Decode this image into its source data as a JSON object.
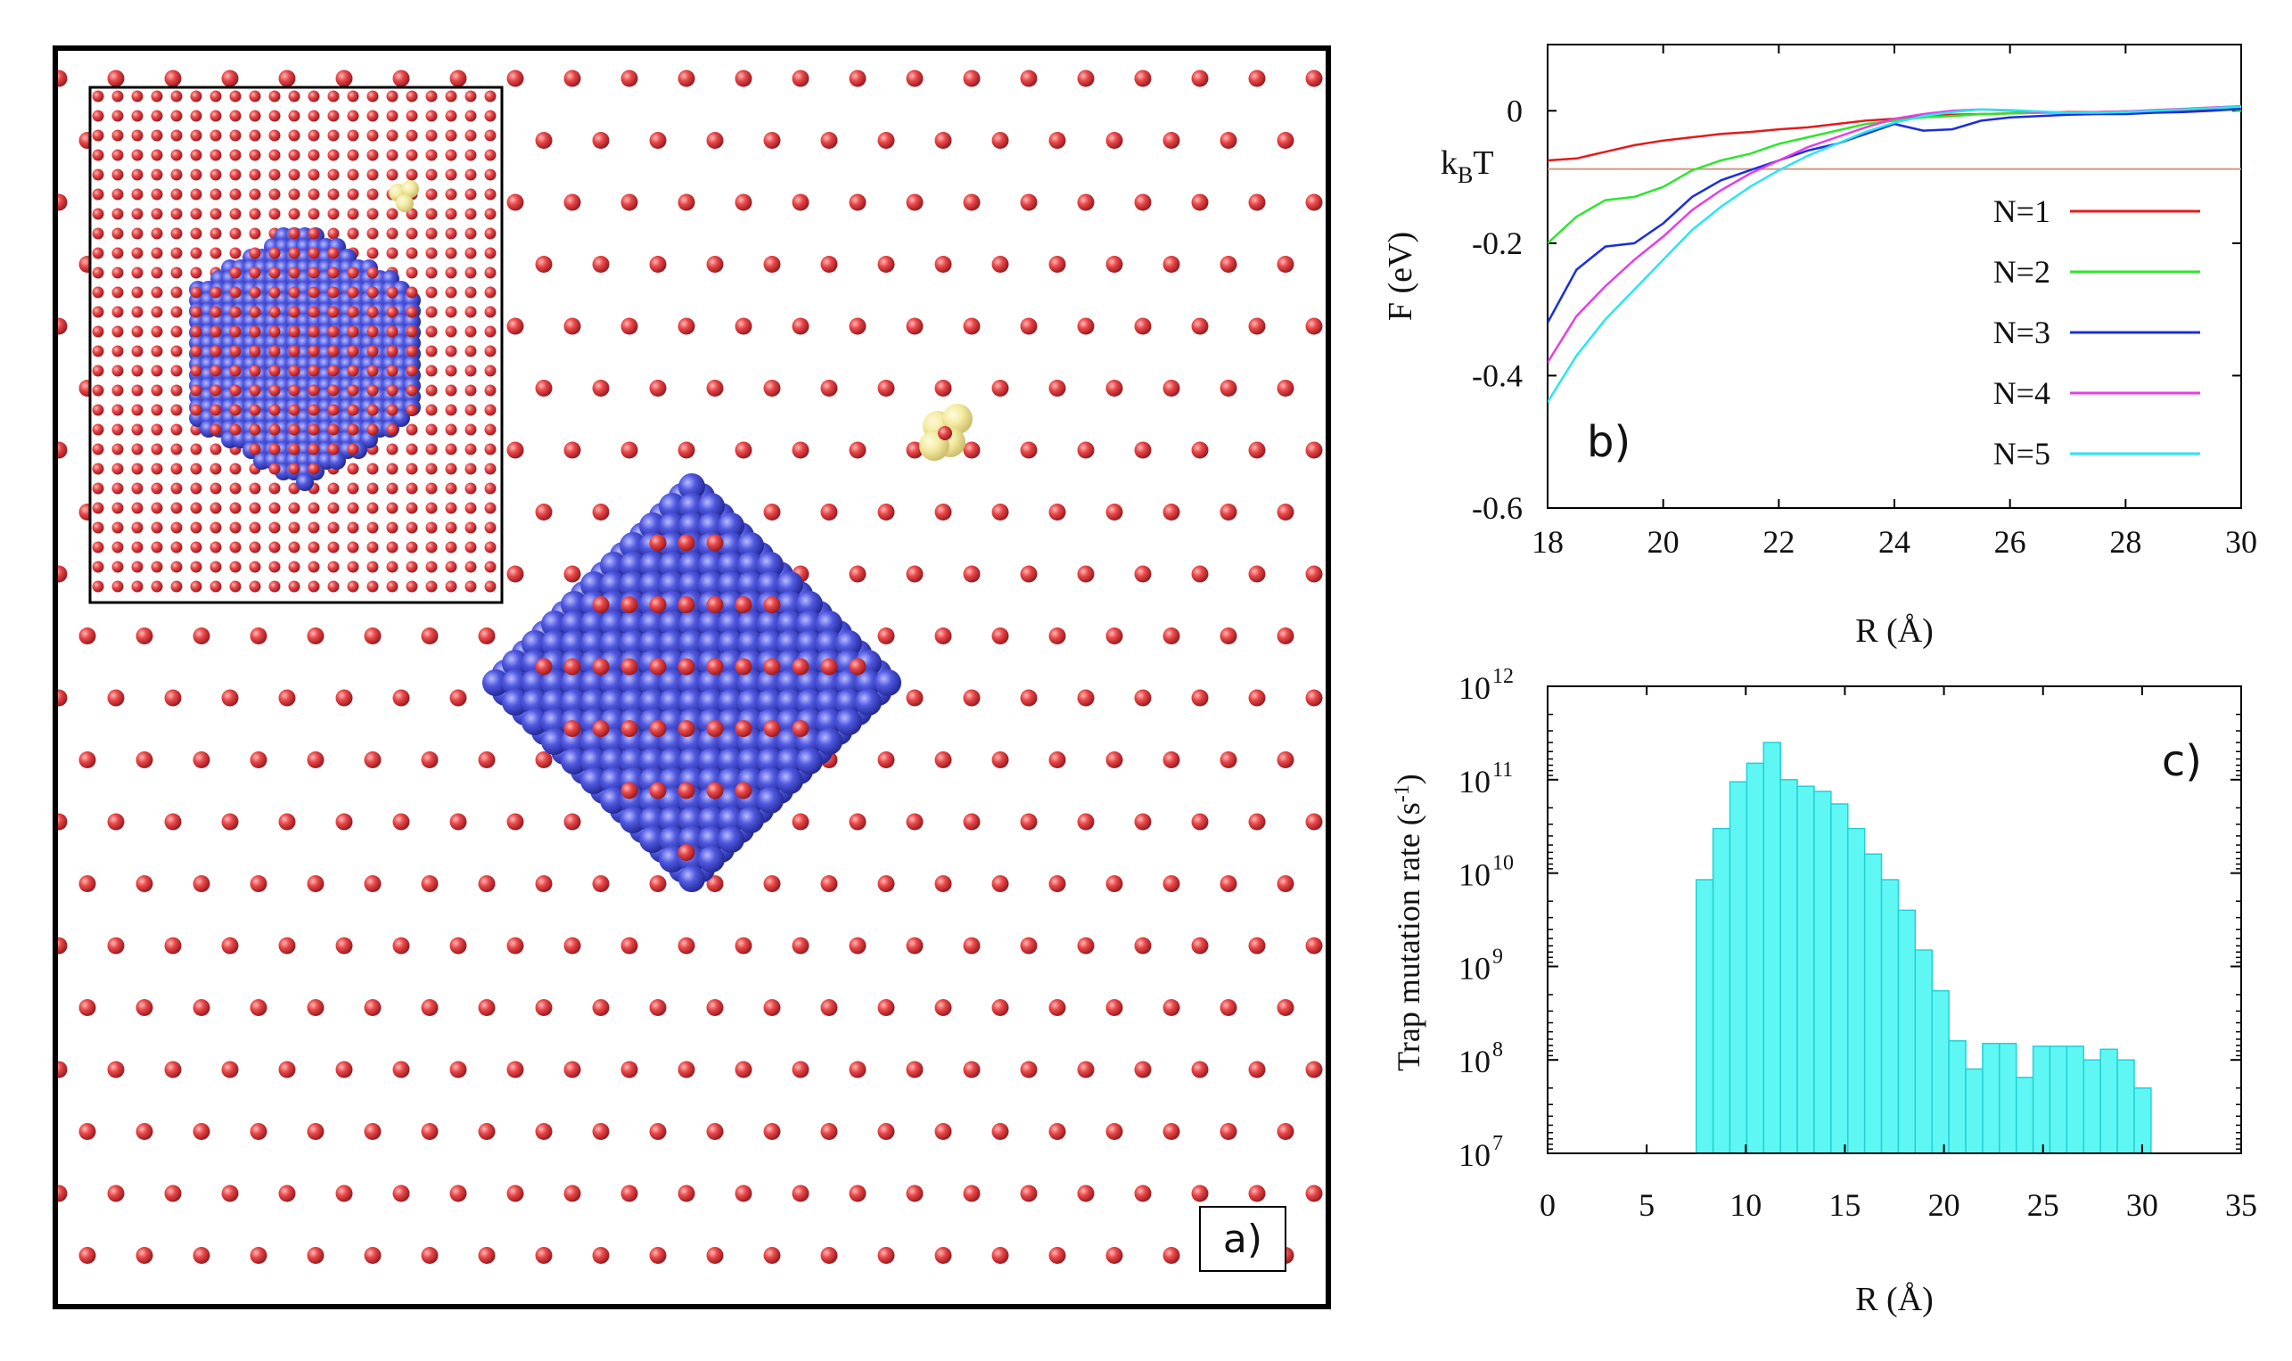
{
  "colors": {
    "lattice_atom": "#e8484a",
    "cluster_atom": "#5058e0",
    "interstitial": "#f3eba0",
    "kbt_line": "#c89a86",
    "hist_fill": "#5ff7f3",
    "hist_edge": "#22d0d8",
    "series_colors": [
      "#e41a1c",
      "#2ee62e",
      "#1a2ee0",
      "#e63ee6",
      "#29e6f0"
    ]
  },
  "panel_a": {
    "label": "a)",
    "icons": [
      "lattice-atom-icon",
      "vacancy-cluster-icon",
      "interstitial-cluster-icon"
    ]
  },
  "chart_data": [
    {
      "type": "line",
      "panel": "b)",
      "title": "",
      "xlabel": "R (Å)",
      "ylabel": "F (eV)",
      "xlim": [
        18,
        30
      ],
      "ylim": [
        -0.6,
        0.1
      ],
      "xticks": [
        "18",
        "20",
        "22",
        "24",
        "26",
        "28",
        "30"
      ],
      "yticks": [
        "0",
        "-0.2",
        "-0.4",
        "-0.6"
      ],
      "ytick_values": [
        0,
        -0.2,
        -0.4,
        -0.6
      ],
      "reference_line": {
        "label_main": "k",
        "label_sub": "B",
        "label_tail": "T",
        "value": -0.088
      },
      "legend_position": "right",
      "x": [
        18,
        18.5,
        19,
        19.5,
        20,
        20.5,
        21,
        21.5,
        22,
        22.5,
        23,
        23.5,
        24,
        24.5,
        25,
        25.5,
        26,
        26.5,
        27,
        27.5,
        28,
        28.5,
        29,
        29.5,
        30
      ],
      "series": [
        {
          "name": "N=1",
          "values": [
            -0.075,
            -0.072,
            -0.062,
            -0.052,
            -0.045,
            -0.04,
            -0.035,
            -0.032,
            -0.028,
            -0.025,
            -0.02,
            -0.015,
            -0.012,
            -0.008,
            -0.006,
            -0.005,
            -0.004,
            -0.003,
            -0.002,
            -0.002,
            -0.001,
            -0.001,
            0.0,
            0.002,
            0.005
          ]
        },
        {
          "name": "N=2",
          "values": [
            -0.2,
            -0.16,
            -0.135,
            -0.13,
            -0.115,
            -0.09,
            -0.075,
            -0.065,
            -0.05,
            -0.04,
            -0.03,
            -0.02,
            -0.015,
            -0.01,
            -0.008,
            -0.005,
            -0.004,
            -0.003,
            -0.003,
            -0.002,
            -0.001,
            0.0,
            0.002,
            0.005,
            0.0
          ]
        },
        {
          "name": "N=3",
          "values": [
            -0.32,
            -0.24,
            -0.205,
            -0.2,
            -0.17,
            -0.13,
            -0.105,
            -0.09,
            -0.075,
            -0.06,
            -0.05,
            -0.035,
            -0.02,
            -0.03,
            -0.028,
            -0.015,
            -0.01,
            -0.008,
            -0.006,
            -0.005,
            -0.005,
            -0.003,
            -0.002,
            0.0,
            0.003
          ]
        },
        {
          "name": "N=4",
          "values": [
            -0.38,
            -0.31,
            -0.265,
            -0.225,
            -0.19,
            -0.15,
            -0.12,
            -0.095,
            -0.075,
            -0.055,
            -0.04,
            -0.025,
            -0.012,
            -0.005,
            0.0,
            0.002,
            0.0,
            -0.002,
            -0.003,
            -0.002,
            -0.001,
            0.001,
            0.003,
            0.005,
            0.007
          ]
        },
        {
          "name": "N=5",
          "values": [
            -0.44,
            -0.37,
            -0.315,
            -0.27,
            -0.225,
            -0.18,
            -0.145,
            -0.115,
            -0.09,
            -0.068,
            -0.05,
            -0.032,
            -0.018,
            -0.008,
            -0.002,
            0.002,
            0.001,
            -0.001,
            -0.003,
            -0.003,
            -0.002,
            0.0,
            0.002,
            0.004,
            0.006
          ]
        }
      ]
    },
    {
      "type": "bar",
      "panel": "c)",
      "title": "",
      "xlabel": "R (Å)",
      "ylabel": "Trap mutation rate (s",
      "ylabel_sup": "-1",
      "ylabel_tail": ")",
      "scale": "log10",
      "xlim": [
        0,
        35
      ],
      "ylim_exp": [
        7,
        12
      ],
      "xticks": [
        "0",
        "5",
        "10",
        "15",
        "20",
        "25",
        "30",
        "35"
      ],
      "ytick_base": "10",
      "ytick_exps": [
        "12",
        "11",
        "10",
        "9",
        "8",
        "7"
      ],
      "bin_width": 0.85,
      "bin_start": 7.5,
      "values": [
        8500000000.0,
        30000000000.0,
        95000000000.0,
        150000000000.0,
        250000000000.0,
        100000000000.0,
        85000000000.0,
        75000000000.0,
        55000000000.0,
        30000000000.0,
        16000000000.0,
        8500000000.0,
        4000000000.0,
        1500000000.0,
        550000000.0,
        160000000.0,
        80000000.0,
        150000000.0,
        150000000.0,
        65000000.0,
        140000000.0,
        140000000.0,
        140000000.0,
        100000000.0,
        130000000.0,
        100000000.0,
        50000000.0
      ]
    }
  ]
}
